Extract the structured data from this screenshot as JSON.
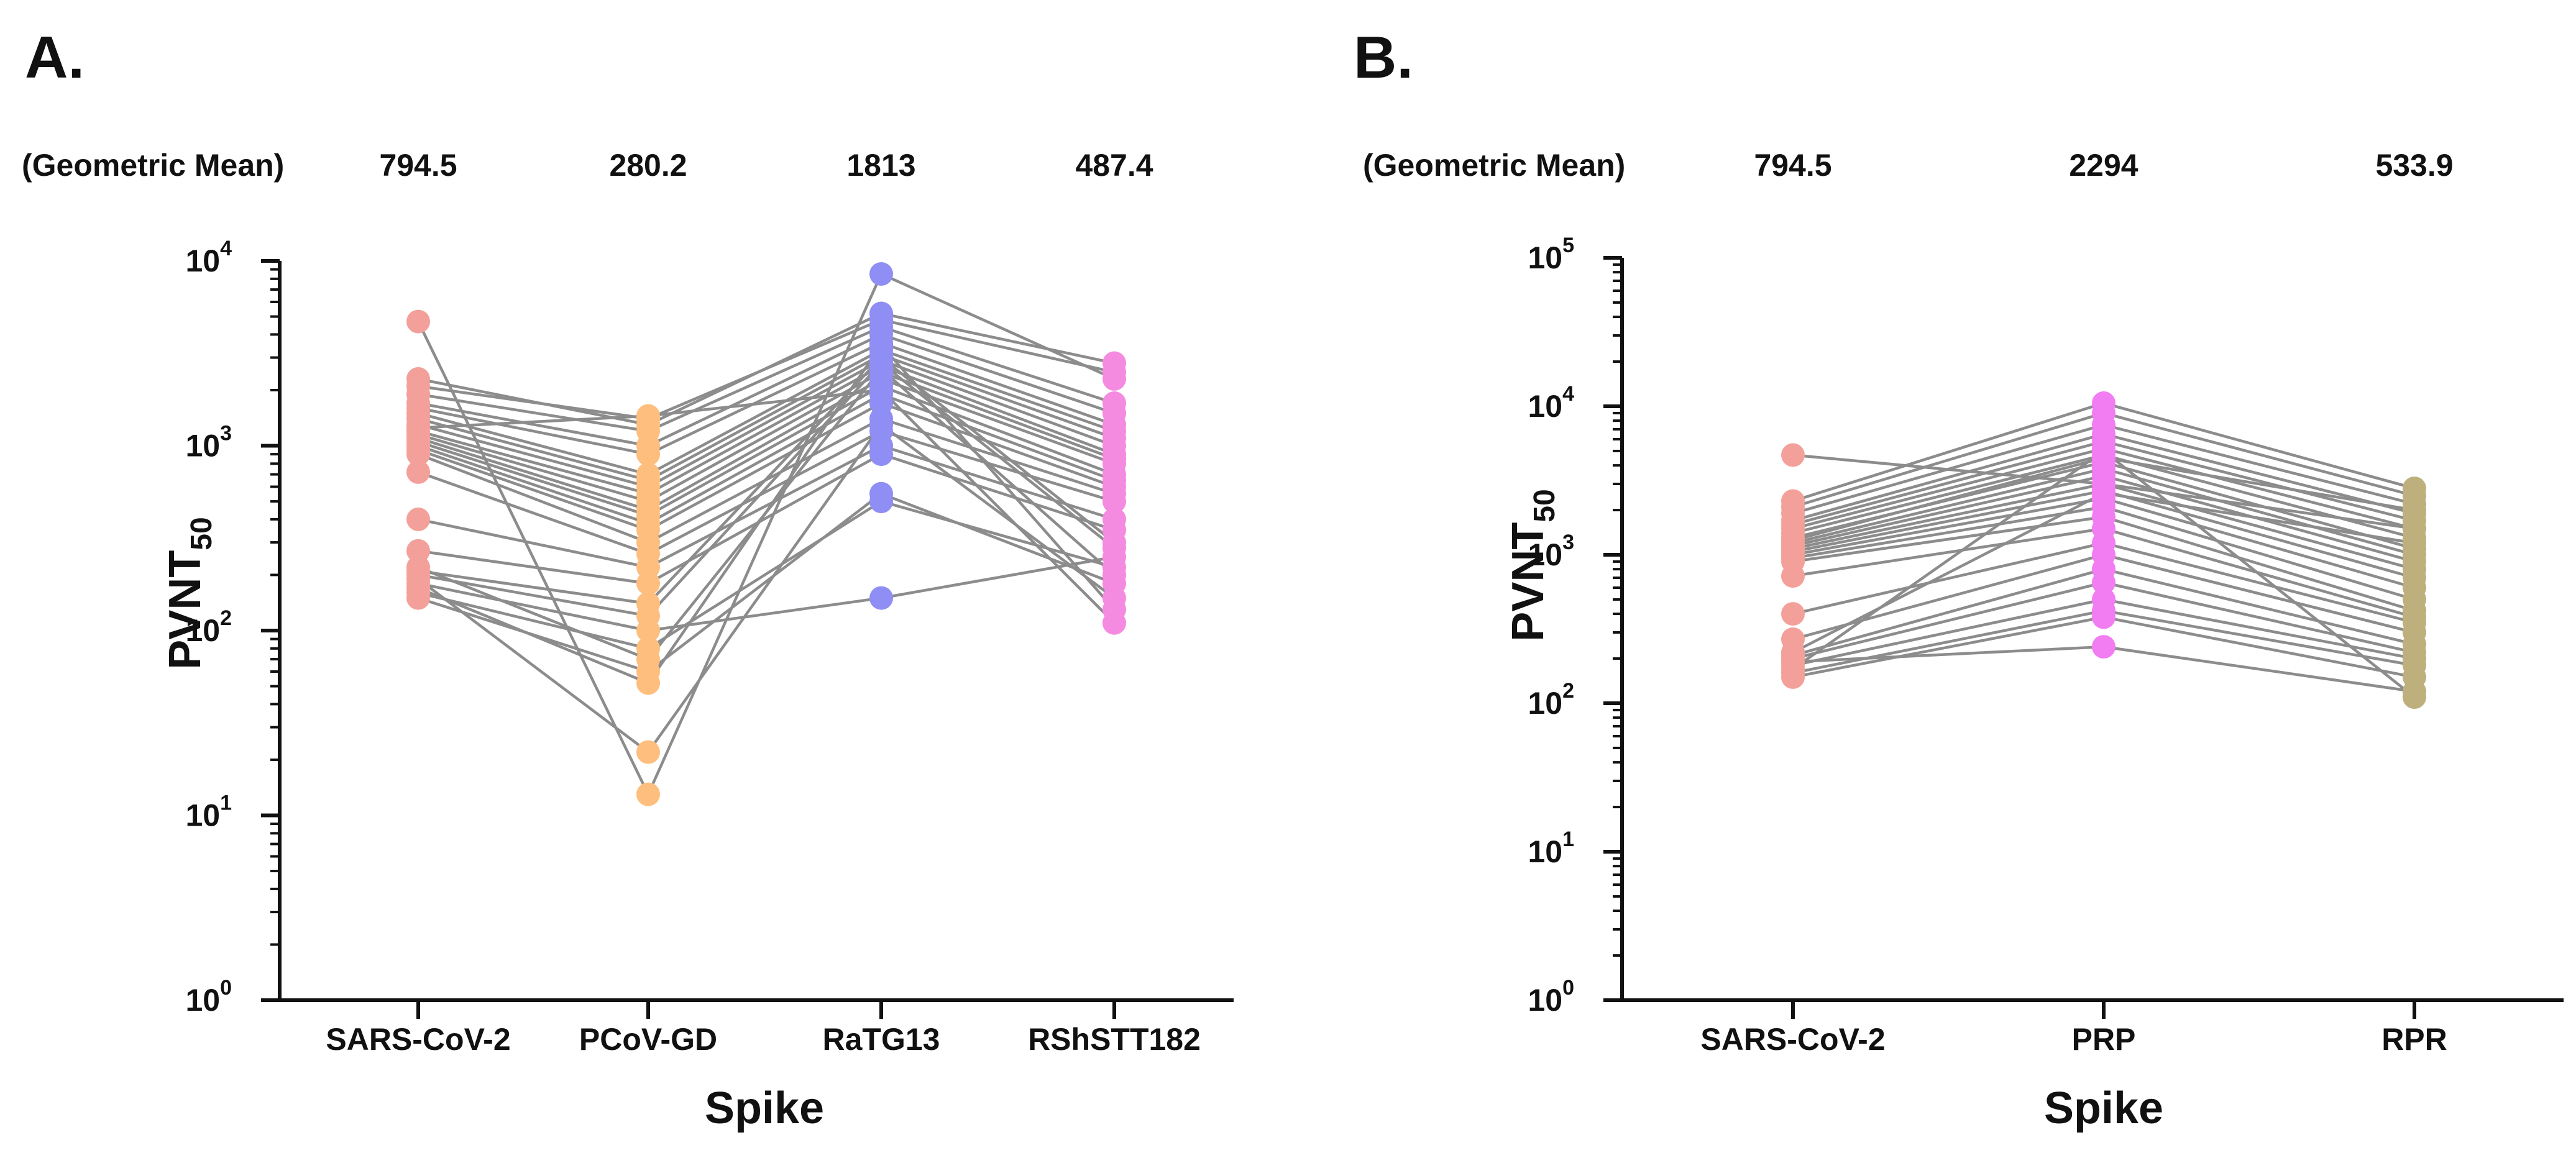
{
  "chart_data": [
    {
      "type": "scatter",
      "panel_label": "A.",
      "header_label": "(Geometric Mean)",
      "categories": [
        "SARS-CoV-2",
        "PCoV-GD",
        "RaTG13",
        "RShSTT182"
      ],
      "geometric_means": [
        "794.5",
        "280.2",
        "1813",
        "487.4"
      ],
      "colors": [
        "#F4A09A",
        "#FDBE7E",
        "#8E8EF5",
        "#F58BE0"
      ],
      "line_color": "#8C8C8C",
      "xlabel": "Spike",
      "ylabel": "PVNT",
      "ylabel_sub": "50",
      "yscale": "log",
      "ylim": [
        1,
        10000
      ],
      "yticks": [
        {
          "base": "10",
          "exp": "0"
        },
        {
          "base": "10",
          "exp": "1"
        },
        {
          "base": "10",
          "exp": "2"
        },
        {
          "base": "10",
          "exp": "3"
        },
        {
          "base": "10",
          "exp": "4"
        }
      ],
      "grid": false,
      "subjects": [
        [
          4700,
          13,
          8500,
          2300
        ],
        [
          2300,
          1300,
          5200,
          2800
        ],
        [
          2100,
          1400,
          4800,
          2500
        ],
        [
          1900,
          1200,
          4400,
          1700
        ],
        [
          1700,
          1000,
          4000,
          1500
        ],
        [
          1600,
          900,
          3600,
          1300
        ],
        [
          1500,
          700,
          3300,
          1200
        ],
        [
          1400,
          650,
          3100,
          1100
        ],
        [
          1300,
          600,
          2900,
          1000
        ],
        [
          1200,
          550,
          2700,
          900
        ],
        [
          1150,
          500,
          2500,
          850
        ],
        [
          1100,
          450,
          2300,
          800
        ],
        [
          1050,
          420,
          2100,
          700
        ],
        [
          1000,
          380,
          1900,
          650
        ],
        [
          950,
          350,
          1700,
          600
        ],
        [
          900,
          300,
          1400,
          550
        ],
        [
          720,
          260,
          1200,
          500
        ],
        [
          400,
          220,
          1000,
          400
        ],
        [
          270,
          180,
          900,
          350
        ],
        [
          210,
          140,
          3000,
          300
        ],
        [
          200,
          120,
          2800,
          280
        ],
        [
          180,
          100,
          150,
          250
        ],
        [
          160,
          80,
          500,
          220
        ],
        [
          150,
          60,
          550,
          180
        ],
        [
          190,
          22,
          1300,
          150
        ],
        [
          170,
          52,
          3500,
          130
        ],
        [
          1250,
          1450,
          2000,
          110
        ],
        [
          220,
          70,
          2600,
          200
        ]
      ]
    },
    {
      "type": "scatter",
      "panel_label": "B.",
      "header_label": "(Geometric Mean)",
      "categories": [
        "SARS-CoV-2",
        "PRP",
        "RPR"
      ],
      "geometric_means": [
        "794.5",
        "2294",
        "533.9"
      ],
      "colors": [
        "#F4A09A",
        "#F27CF2",
        "#BDB07C"
      ],
      "line_color": "#8C8C8C",
      "xlabel": "Spike",
      "ylabel": "PVNT",
      "ylabel_sub": "50",
      "yscale": "log",
      "ylim": [
        1,
        100000
      ],
      "yticks": [
        {
          "base": "10",
          "exp": "0"
        },
        {
          "base": "10",
          "exp": "1"
        },
        {
          "base": "10",
          "exp": "2"
        },
        {
          "base": "10",
          "exp": "3"
        },
        {
          "base": "10",
          "exp": "4"
        },
        {
          "base": "10",
          "exp": "5"
        }
      ],
      "grid": false,
      "subjects": [
        [
          4700,
          3000,
          1500
        ],
        [
          2300,
          10500,
          2800
        ],
        [
          2100,
          9000,
          2500
        ],
        [
          1900,
          7500,
          2200
        ],
        [
          1700,
          6500,
          1900
        ],
        [
          1600,
          5800,
          1700
        ],
        [
          1500,
          5200,
          1500
        ],
        [
          1400,
          4700,
          1300
        ],
        [
          1300,
          4200,
          1100
        ],
        [
          1200,
          3800,
          1000
        ],
        [
          1150,
          3400,
          900
        ],
        [
          1100,
          3000,
          800
        ],
        [
          1050,
          2700,
          700
        ],
        [
          1000,
          2400,
          600
        ],
        [
          950,
          2100,
          500
        ],
        [
          900,
          1800,
          420
        ],
        [
          720,
          1500,
          380
        ],
        [
          400,
          1200,
          350
        ],
        [
          270,
          1000,
          300
        ],
        [
          210,
          800,
          250
        ],
        [
          200,
          650,
          220
        ],
        [
          180,
          500,
          200
        ],
        [
          160,
          420,
          180
        ],
        [
          150,
          380,
          150
        ],
        [
          190,
          240,
          120
        ],
        [
          170,
          5000,
          110
        ],
        [
          1250,
          4500,
          2000
        ],
        [
          220,
          2600,
          1200
        ]
      ]
    }
  ]
}
